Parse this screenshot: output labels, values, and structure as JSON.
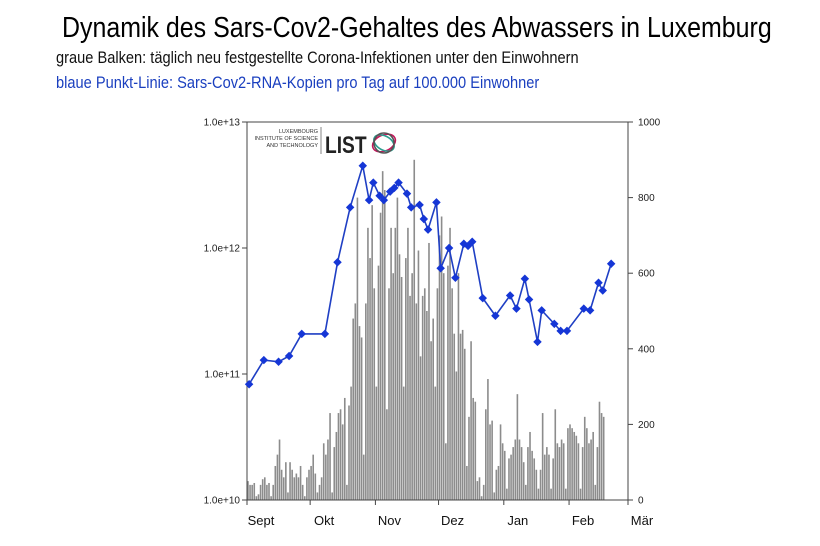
{
  "title": "Dynamik des Sars-Cov2-Gehaltes des Abwassers in Luxemburg",
  "subtitle_bars": "graue Balken: täglich neu festgestellte Corona-Infektionen unter den Einwohnern",
  "subtitle_line": "blaue Punkt-Linie: Sars-Cov2-RNA-Kopien pro Tag auf 100.000 Einwohner",
  "logo": {
    "line1": "LUXEMBOURG",
    "line2": "INSTITUTE OF SCIENCE",
    "line3": "AND TECHNOLOGY",
    "mark": "LIST"
  },
  "colors": {
    "bars": "#8c8c8c",
    "line": "#1f3fc4",
    "markers": "#1536d6"
  },
  "chart_data": {
    "type": "bar+line",
    "x_axis": {
      "type": "date",
      "tick_labels": [
        "Sept",
        "Okt",
        "Nov",
        "Dez",
        "Jan",
        "Feb",
        "Mär"
      ]
    },
    "y_left": {
      "scale": "log",
      "range": [
        10000000000.0,
        10000000000000.0
      ],
      "tick_labels": [
        "1.0e+10",
        "1.0e+11",
        "1.0e+12",
        "1.0e+13"
      ],
      "ticks": [
        10000000000.0,
        100000000000.0,
        1000000000000.0,
        10000000000000.0
      ]
    },
    "y_right": {
      "scale": "linear",
      "range": [
        0,
        1000
      ],
      "tick_labels": [
        "0",
        "200",
        "400",
        "600",
        "800",
        "1000"
      ],
      "ticks": [
        0,
        200,
        400,
        600,
        800,
        1000
      ]
    },
    "grid": false,
    "bars": {
      "axis": "right",
      "first_date": "09-01",
      "values": [
        50,
        40,
        40,
        45,
        10,
        15,
        40,
        55,
        60,
        40,
        45,
        10,
        40,
        90,
        120,
        160,
        80,
        60,
        100,
        20,
        100,
        80,
        60,
        70,
        60,
        90,
        40,
        10,
        60,
        80,
        90,
        120,
        70,
        20,
        40,
        60,
        150,
        120,
        160,
        230,
        20,
        140,
        180,
        230,
        240,
        200,
        270,
        40,
        250,
        300,
        480,
        520,
        800,
        460,
        430,
        120,
        520,
        720,
        640,
        780,
        560,
        300,
        620,
        760,
        870,
        820,
        240,
        560,
        720,
        600,
        720,
        800,
        650,
        590,
        300,
        640,
        720,
        540,
        600,
        900,
        520,
        660,
        380,
        540,
        560,
        500,
        680,
        420,
        480,
        300,
        560,
        700,
        750,
        600,
        150,
        620,
        720,
        560,
        440,
        340,
        600,
        440,
        450,
        400,
        90,
        220,
        420,
        270,
        260,
        50,
        60,
        10,
        40,
        240,
        320,
        200,
        210,
        20,
        80,
        90,
        200,
        150,
        130,
        30,
        110,
        120,
        140,
        160,
        280,
        160,
        140,
        100,
        40,
        140,
        180,
        130,
        110,
        80,
        30,
        80,
        230,
        120,
        140,
        120,
        30,
        110,
        240,
        150,
        140,
        160,
        150,
        30,
        190,
        200,
        190,
        180,
        170,
        150,
        30,
        140,
        220,
        190,
        150,
        160,
        180,
        40,
        140,
        260,
        230,
        220
      ]
    },
    "line": {
      "axis": "left",
      "points": [
        [
          "09-02",
          83000000000.0
        ],
        [
          "09-09",
          129000000000.0
        ],
        [
          "09-16",
          125000000000.0
        ],
        [
          "09-21",
          139000000000.0
        ],
        [
          "09-27",
          208000000000.0
        ],
        [
          "10-08",
          208000000000.0
        ],
        [
          "10-14",
          770000000000.0
        ],
        [
          "10-20",
          2100000000000.0
        ],
        [
          "10-26",
          4500000000000.0
        ],
        [
          "10-29",
          2400000000000.0
        ],
        [
          "10-31",
          3300000000000.0
        ],
        [
          "11-03",
          2600000000000.0
        ],
        [
          "11-05",
          2400000000000.0
        ],
        [
          "11-08",
          2800000000000.0
        ],
        [
          "11-10",
          3000000000000.0
        ],
        [
          "11-12",
          3300000000000.0
        ],
        [
          "11-16",
          2700000000000.0
        ],
        [
          "11-18",
          2100000000000.0
        ],
        [
          "11-22",
          2200000000000.0
        ],
        [
          "11-24",
          1700000000000.0
        ],
        [
          "11-26",
          1400000000000.0
        ],
        [
          "11-30",
          2300000000000.0
        ],
        [
          "12-02",
          690000000000.0
        ],
        [
          "12-06",
          1000000000000.0
        ],
        [
          "12-09",
          580000000000.0
        ],
        [
          "12-13",
          1080000000000.0
        ],
        [
          "12-15",
          1040000000000.0
        ],
        [
          "12-17",
          1120000000000.0
        ],
        [
          "12-22",
          400000000000.0
        ],
        [
          "12-28",
          290000000000.0
        ],
        [
          "01-04",
          420000000000.0
        ],
        [
          "01-07",
          330000000000.0
        ],
        [
          "01-11",
          570000000000.0
        ],
        [
          "01-13",
          390000000000.0
        ],
        [
          "01-17",
          180000000000.0
        ],
        [
          "01-19",
          320000000000.0
        ],
        [
          "01-25",
          250000000000.0
        ],
        [
          "01-28",
          220000000000.0
        ],
        [
          "01-31",
          220000000000.0
        ],
        [
          "02-08",
          330000000000.0
        ],
        [
          "02-11",
          320000000000.0
        ],
        [
          "02-15",
          530000000000.0
        ],
        [
          "02-17",
          460000000000.0
        ],
        [
          "02-21",
          750000000000.0
        ]
      ]
    }
  }
}
